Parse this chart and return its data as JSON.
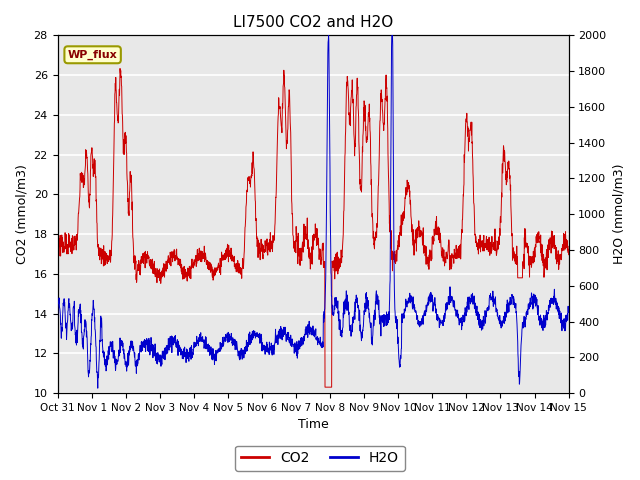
{
  "title": "LI7500 CO2 and H2O",
  "xlabel": "Time",
  "ylabel_left": "CO2 (mmol/m3)",
  "ylabel_right": "H2O (mmol/m3)",
  "ylim_left": [
    10,
    28
  ],
  "ylim_right": [
    0,
    2000
  ],
  "yticks_left": [
    10,
    12,
    14,
    16,
    18,
    20,
    22,
    24,
    26,
    28
  ],
  "yticks_right": [
    0,
    200,
    400,
    600,
    800,
    1000,
    1200,
    1400,
    1600,
    1800,
    2000
  ],
  "x_tick_labels": [
    "Oct 31",
    "Nov 1",
    "Nov 2",
    "Nov 3",
    "Nov 4",
    "Nov 5",
    "Nov 6",
    "Nov 7",
    "Nov 8",
    "Nov 9",
    "Nov 10",
    "Nov 11",
    "Nov 12",
    "Nov 13",
    "Nov 14",
    "Nov 15"
  ],
  "co2_color": "#CC0000",
  "h2o_color": "#0000CC",
  "background_color": "#FFFFFF",
  "plot_bg_color": "#E8E8E8",
  "grid_color": "#FFFFFF",
  "annotation_text": "WP_flux",
  "annotation_bg": "#FFFFCC",
  "annotation_border": "#999900",
  "legend_co2": "CO2",
  "legend_h2o": "H2O"
}
